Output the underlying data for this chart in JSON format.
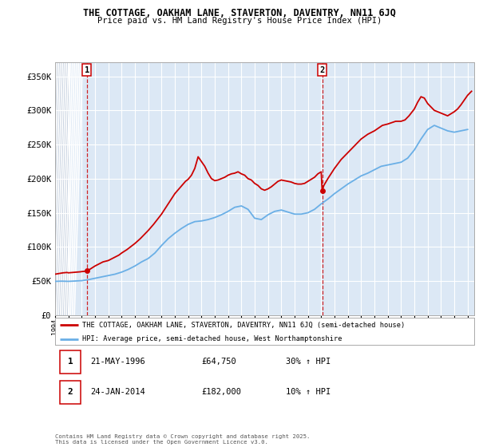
{
  "title1": "THE COTTAGE, OAKHAM LANE, STAVERTON, DAVENTRY, NN11 6JQ",
  "title2": "Price paid vs. HM Land Registry's House Price Index (HPI)",
  "ylim": [
    0,
    370000
  ],
  "xlim_start": 1994.0,
  "xlim_end": 2025.5,
  "sale1_date": 1996.385,
  "sale1_price": 64750,
  "sale2_date": 2014.07,
  "sale2_price": 182000,
  "legend_line1": "THE COTTAGE, OAKHAM LANE, STAVERTON, DAVENTRY, NN11 6JQ (semi-detached house)",
  "legend_line2": "HPI: Average price, semi-detached house, West Northamptonshire",
  "footnote": "Contains HM Land Registry data © Crown copyright and database right 2025.\nThis data is licensed under the Open Government Licence v3.0.",
  "hpi_color": "#6aafe6",
  "price_color": "#cc0000",
  "grid_color": "#c8d8e8",
  "bg_color": "#dce8f5",
  "hatch_color": "#c0ccdc"
}
